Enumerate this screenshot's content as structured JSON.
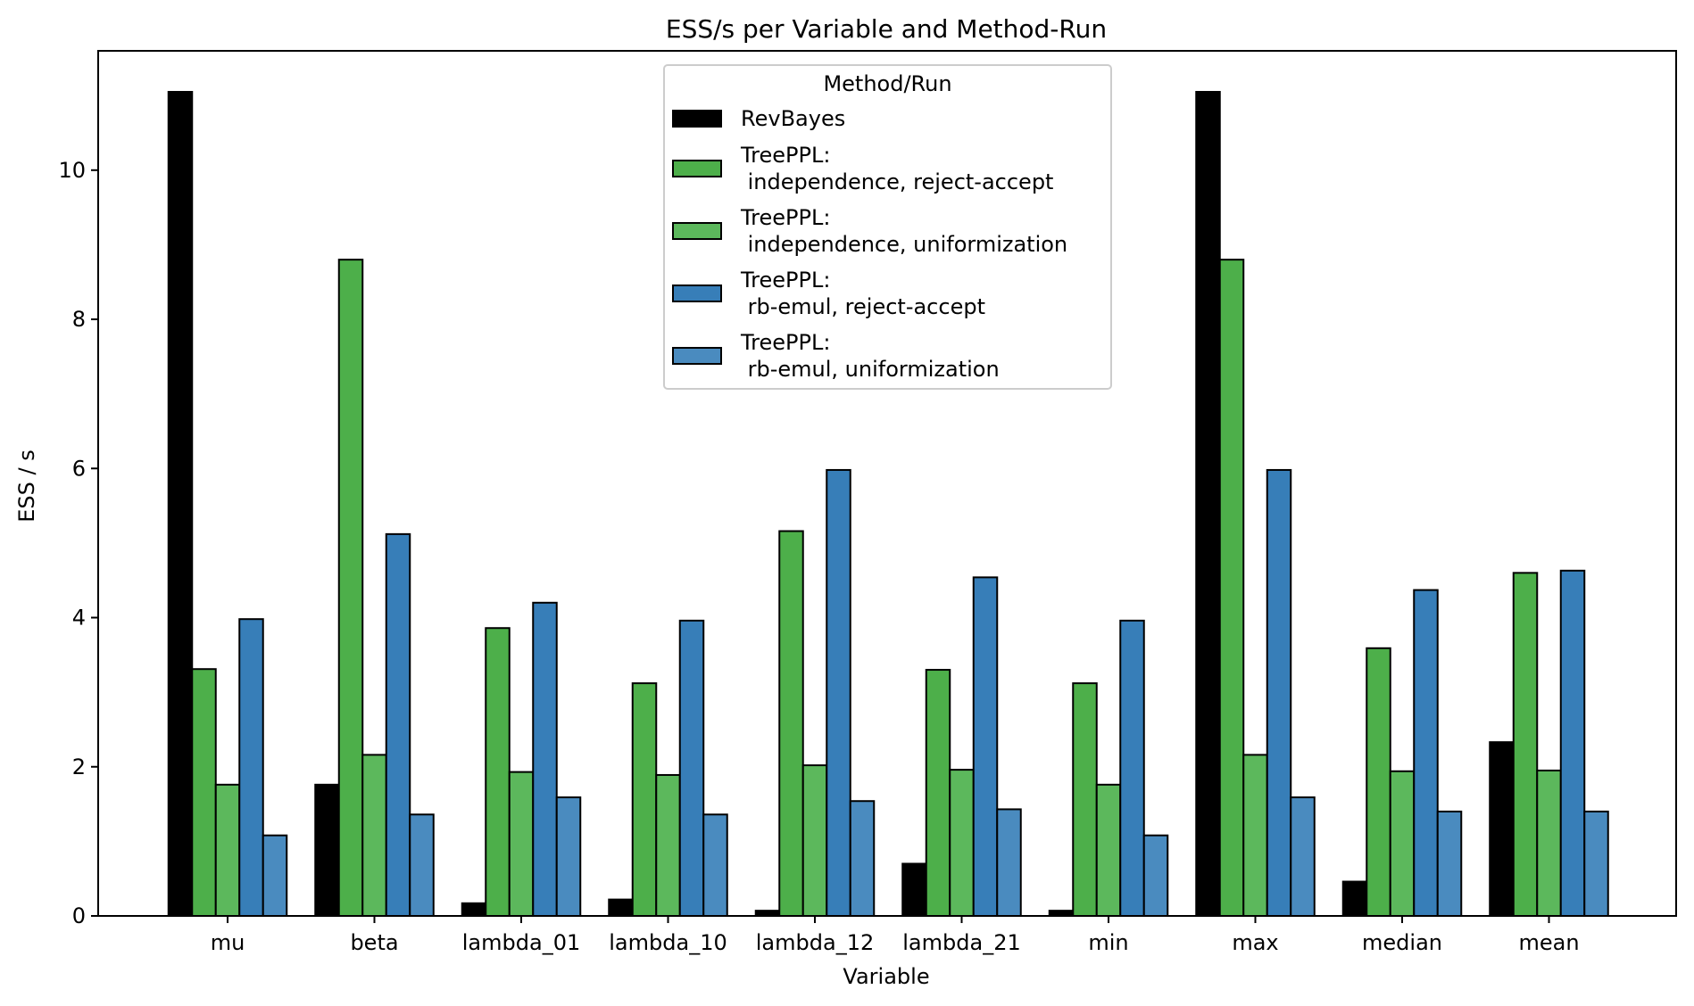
{
  "chart_data": {
    "type": "bar",
    "title": "ESS/s per Variable and Method-Run",
    "xlabel": "Variable",
    "ylabel": "ESS / s",
    "ylim": [
      0,
      11.6
    ],
    "yticks": [
      0,
      2,
      4,
      6,
      8,
      10
    ],
    "grid": false,
    "legend": {
      "title": "Method/Run",
      "placement": "top-center"
    },
    "categories": [
      "mu",
      "beta",
      "lambda_01",
      "lambda_10",
      "lambda_12",
      "lambda_21",
      "min",
      "max",
      "median",
      "mean"
    ],
    "series": [
      {
        "name": "RevBayes",
        "legend_lines": [
          "RevBayes"
        ],
        "color": "#000000",
        "values": [
          11.05,
          1.76,
          0.17,
          0.22,
          0.07,
          0.7,
          0.07,
          11.05,
          0.46,
          2.33
        ]
      },
      {
        "name": "TreePPL:\n independence, reject-accept",
        "legend_lines": [
          "TreePPL:",
          " independence, reject-accept"
        ],
        "color": "#4daf4a",
        "values": [
          3.31,
          8.8,
          3.86,
          3.12,
          5.16,
          3.3,
          3.12,
          8.8,
          3.59,
          4.6
        ]
      },
      {
        "name": "TreePPL:\n independence, uniformization",
        "legend_lines": [
          "TreePPL:",
          " independence, uniformization"
        ],
        "color": "#5cb85c",
        "values": [
          1.76,
          2.16,
          1.93,
          1.89,
          2.02,
          1.96,
          1.76,
          2.16,
          1.94,
          1.95
        ]
      },
      {
        "name": "TreePPL:\n rb-emul, reject-accept",
        "legend_lines": [
          "TreePPL:",
          " rb-emul, reject-accept"
        ],
        "color": "#377eb8",
        "values": [
          3.98,
          5.12,
          4.2,
          3.96,
          5.98,
          4.54,
          3.96,
          5.98,
          4.37,
          4.63
        ]
      },
      {
        "name": "TreePPL:\n rb-emul, uniformization",
        "legend_lines": [
          "TreePPL:",
          " rb-emul, uniformization"
        ],
        "color": "#4a8bbf",
        "values": [
          1.08,
          1.36,
          1.59,
          1.36,
          1.54,
          1.43,
          1.08,
          1.59,
          1.4,
          1.4
        ]
      }
    ]
  }
}
